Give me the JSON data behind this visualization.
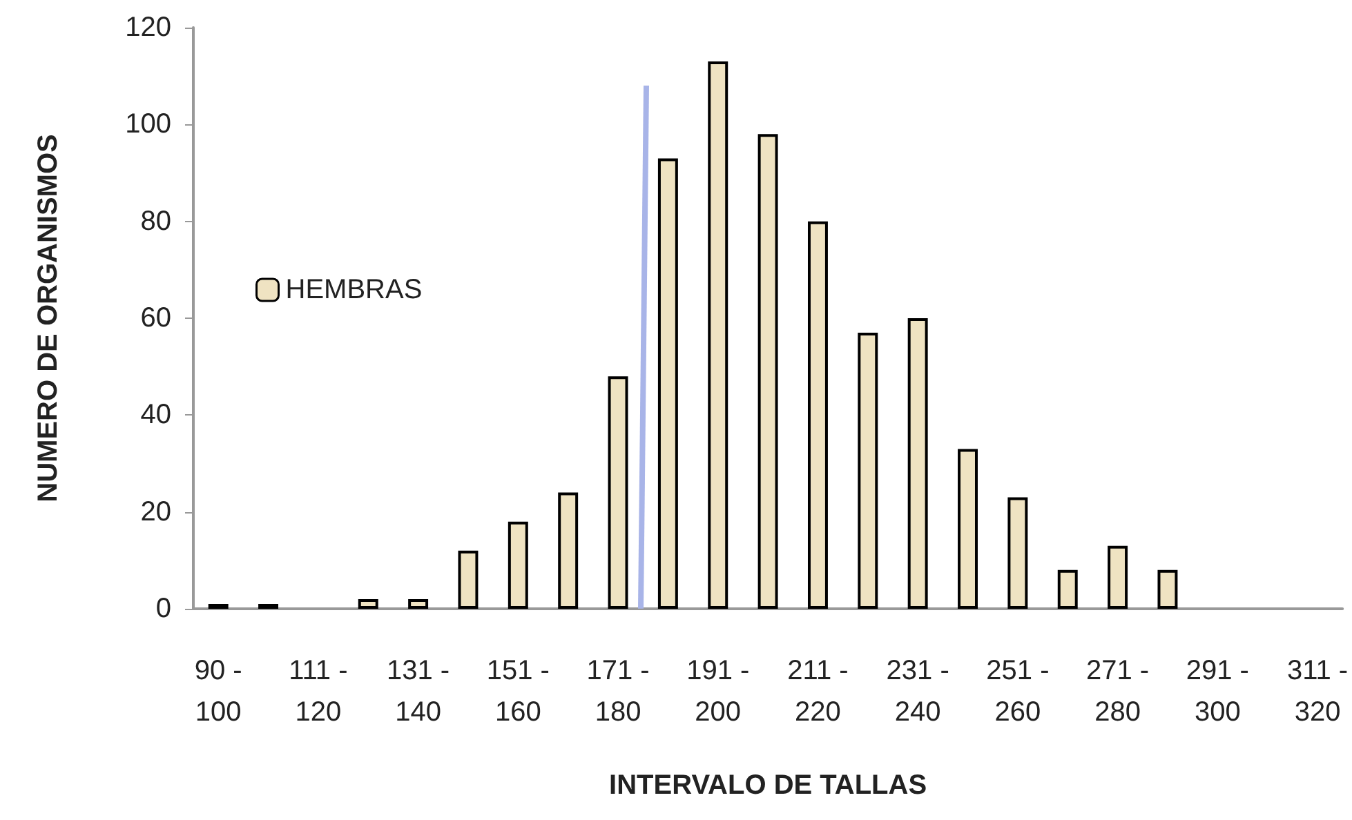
{
  "chart_data": {
    "type": "bar",
    "xlabel": "INTERVALO DE TALLAS",
    "ylabel": "NUMERO DE ORGANISMOS",
    "categories": [
      "90 - 100",
      null,
      "111 - 120",
      null,
      "131 - 140",
      null,
      "151 - 160",
      null,
      "171 - 180",
      null,
      "191 - 200",
      null,
      "211 - 220",
      null,
      "231 - 240",
      null,
      "251 - 260",
      null,
      "271 - 280",
      null,
      "291 - 300",
      null,
      "311 - 320"
    ],
    "series": [
      {
        "name": "HEMBRAS",
        "color": "#efe3c2",
        "values": [
          1,
          1,
          0,
          2,
          2,
          12,
          18,
          24,
          48,
          93,
          113,
          98,
          80,
          57,
          60,
          33,
          23,
          8,
          13,
          8,
          0,
          0,
          0
        ]
      }
    ],
    "ylim": [
      0,
      120
    ],
    "yticks": [
      0,
      20,
      40,
      60,
      80,
      100,
      120
    ],
    "grid": false,
    "legend": "left"
  }
}
